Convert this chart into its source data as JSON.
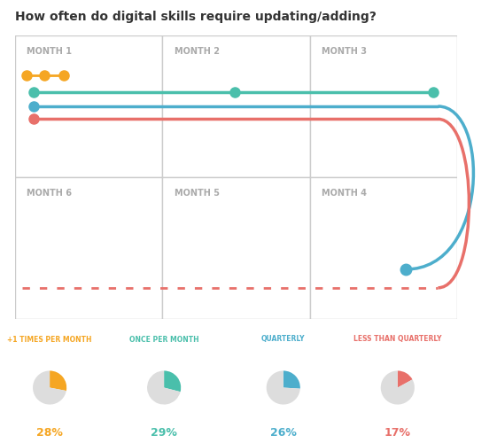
{
  "title": "How often do digital skills require updating/adding?",
  "title_fontsize": 10,
  "title_color": "#333333",
  "background_color": "#ffffff",
  "box_color": "#cccccc",
  "month_label_color": "#aaaaaa",
  "colors": {
    "orange": "#F5A623",
    "teal": "#4ABFAB",
    "blue": "#4DAECC",
    "red": "#E8706A"
  },
  "legend_labels": [
    "+1 TIMES PER MONTH",
    "ONCE PER MONTH",
    "QUARTERLY",
    "LESS THAN QUARTERLY"
  ],
  "legend_colors": [
    "#F5A623",
    "#4ABFAB",
    "#4DAECC",
    "#E8706A"
  ],
  "legend_pct": [
    "28%",
    "29%",
    "26%",
    "17%"
  ],
  "pie_slices": [
    28,
    29,
    26,
    17
  ],
  "pie_gray": "#dddddd"
}
